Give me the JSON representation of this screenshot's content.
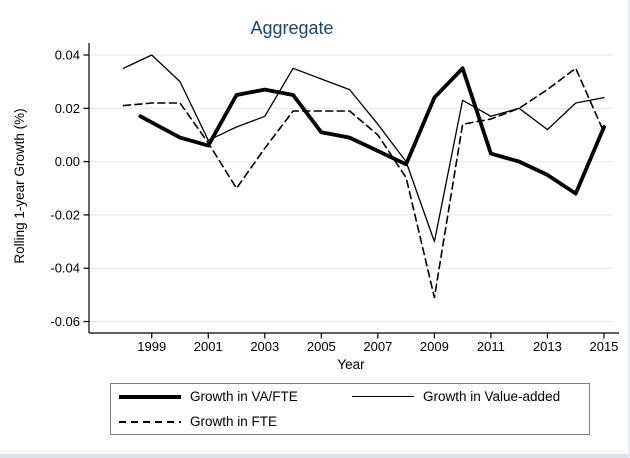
{
  "colors": {
    "title": "#1a476f",
    "grid": "#dfe9f0",
    "axis": "#000000",
    "line": "#000000",
    "legend_border": "#7f7f7f",
    "window_edge": "#d4e6f1"
  },
  "chart_data": {
    "type": "line",
    "title": "Aggregate",
    "xlabel": "Year",
    "ylabel": "Rolling 1-year Growth (%)",
    "xlim": [
      1996.78,
      2015.32
    ],
    "ylim": [
      -0.0643,
      0.0445
    ],
    "xticks": [
      1999,
      2001,
      2003,
      2005,
      2007,
      2009,
      2011,
      2013,
      2015
    ],
    "xtick_labels": [
      "1999",
      "2001",
      "2003",
      "2005",
      "2007",
      "2009",
      "2011",
      "2013",
      "2015"
    ],
    "yticks": [
      0.04,
      0.02,
      0.0,
      -0.02,
      -0.04,
      -0.06
    ],
    "ytick_labels": [
      "0.04",
      "0.02",
      "0.00",
      "-0.02",
      "-0.04",
      "-0.06"
    ],
    "grid": true,
    "legend_position": "bottom",
    "series": [
      {
        "name": "Growth in VA/FTE",
        "style": "thick-solid",
        "x": [
          1998.6,
          2000,
          2001,
          2002,
          2003,
          2004,
          2005,
          2006,
          2007,
          2008,
          2009,
          2010,
          2011,
          2012,
          2013,
          2014,
          2015
        ],
        "values": [
          0.017,
          0.009,
          0.006,
          0.025,
          0.027,
          0.025,
          0.011,
          0.009,
          0.004,
          -0.001,
          0.024,
          0.035,
          0.003,
          0.0,
          -0.005,
          -0.012,
          0.013
        ]
      },
      {
        "name": "Growth in Value-added",
        "style": "thin-solid",
        "x": [
          1998,
          1999,
          2000,
          2001,
          2002,
          2003,
          2004,
          2005,
          2006,
          2007,
          2008,
          2009,
          2010,
          2011,
          2012,
          2013,
          2014,
          2015
        ],
        "values": [
          0.035,
          0.04,
          0.03,
          0.008,
          0.013,
          0.017,
          0.035,
          0.031,
          0.027,
          0.014,
          0.0,
          -0.03,
          0.023,
          0.017,
          0.02,
          0.012,
          0.022,
          0.024
        ]
      },
      {
        "name": "Growth in FTE",
        "style": "dashed",
        "x": [
          1998,
          1999,
          2000,
          2001,
          2002,
          2003,
          2004,
          2005,
          2006,
          2007,
          2008,
          2009,
          2010,
          2011,
          2012,
          2013,
          2014,
          2015
        ],
        "values": [
          0.021,
          0.022,
          0.022,
          0.007,
          -0.01,
          0.005,
          0.019,
          0.019,
          0.019,
          0.01,
          -0.006,
          -0.051,
          0.014,
          0.016,
          0.02,
          0.027,
          0.035,
          0.011
        ]
      }
    ]
  }
}
